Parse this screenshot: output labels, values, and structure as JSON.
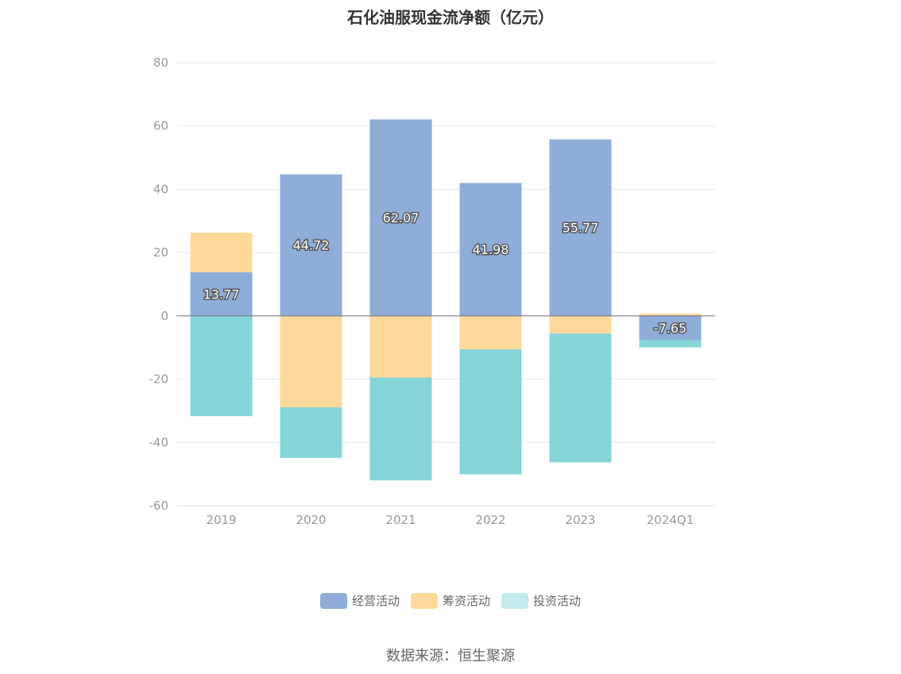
{
  "chart_data": {
    "type": "bar",
    "stacked": true,
    "title": "石化油服现金流净额（亿元）",
    "categories": [
      "2019",
      "2020",
      "2021",
      "2022",
      "2023",
      "2024Q1"
    ],
    "series": [
      {
        "name": "经营活动",
        "color": "#8eadd9",
        "values": [
          13.77,
          44.72,
          62.07,
          41.98,
          55.77,
          -7.65
        ],
        "labels": [
          "13.77",
          "44.72",
          "62.07",
          "41.98",
          "55.77",
          "-7.65"
        ]
      },
      {
        "name": "筹资活动",
        "color": "#fed99b",
        "values": [
          12.5,
          -28.9,
          -19.5,
          -10.6,
          -5.6,
          0.7
        ]
      },
      {
        "name": "投资活动",
        "color": "#86d5d8",
        "legend_color": "#c3e9ec",
        "values": [
          -31.7,
          -16.0,
          -32.5,
          -39.5,
          -40.7,
          -2.3
        ]
      }
    ],
    "yticks": [
      "80",
      "60",
      "40",
      "20",
      "0",
      "-20",
      "-40",
      "-60"
    ],
    "ylim": [
      -60,
      80
    ],
    "grid": true,
    "legend_position": "bottom"
  },
  "source": "数据来源：恒生聚源"
}
